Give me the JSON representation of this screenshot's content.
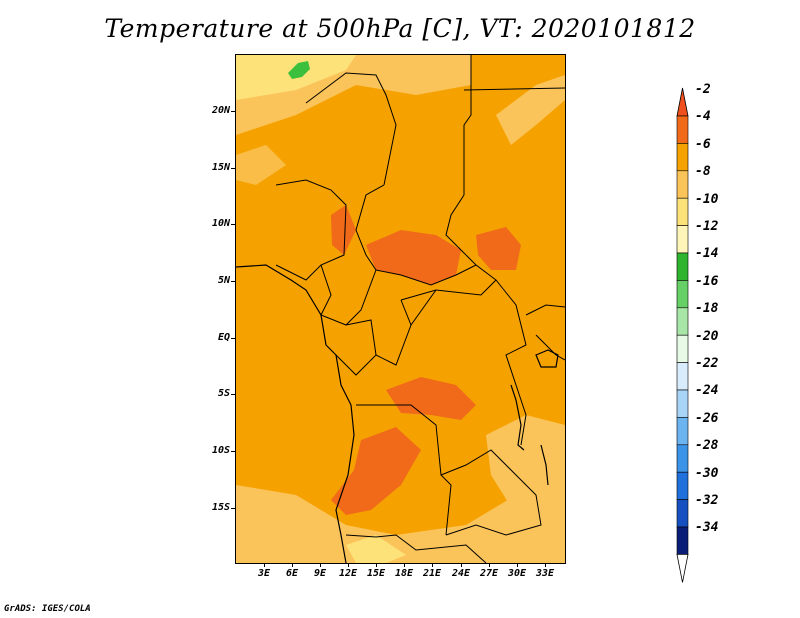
{
  "title": "Temperature at 500hPa [C], VT: 2020101812",
  "footer": "GrADS: IGES/COLA",
  "map": {
    "lat_labels": [
      "20N",
      "15N",
      "10N",
      "5N",
      "EQ",
      "5S",
      "10S",
      "15S"
    ],
    "lon_labels": [
      "3E",
      "6E",
      "9E",
      "12E",
      "15E",
      "18E",
      "21E",
      "24E",
      "27E",
      "30E",
      "33E"
    ],
    "colors": {
      "background_band": "#f5a200",
      "warm_patches": "#f06a1a",
      "cool_patches": "#fbc45a",
      "coolest_patches": "#fde27a",
      "green_patch": "#3cbf3c",
      "borders": "#000000"
    }
  },
  "colorbar": {
    "labels": [
      "-2",
      "-4",
      "-6",
      "-8",
      "-10",
      "-12",
      "-14",
      "-16",
      "-18",
      "-20",
      "-22",
      "-24",
      "-26",
      "-28",
      "-30",
      "-32",
      "-34"
    ],
    "colors": [
      "#f0501e",
      "#f06a1a",
      "#f5a200",
      "#fbc45a",
      "#fde27a",
      "#fff5b8",
      "#2eb42e",
      "#66d066",
      "#a8e6a8",
      "#e6fae6",
      "#d8ecfc",
      "#a8d4f8",
      "#6cb4f0",
      "#3c94e8",
      "#2070dc",
      "#1650c0",
      "#0a1e78",
      "#ffffff"
    ]
  }
}
